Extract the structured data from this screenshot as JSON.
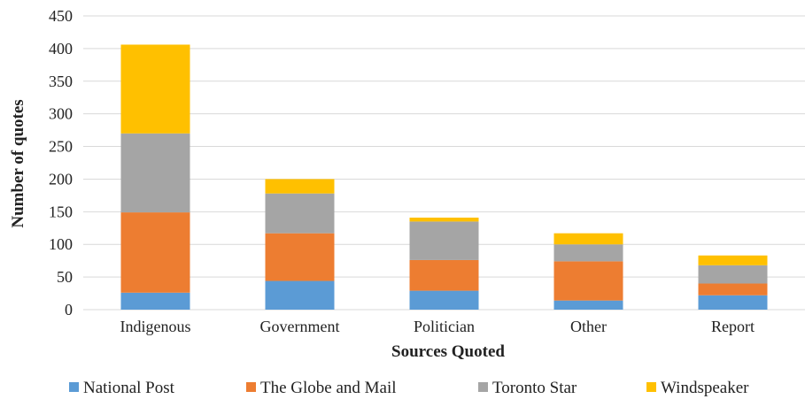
{
  "chart_data": {
    "type": "bar",
    "stacked": true,
    "categories": [
      "Indigenous",
      "Government",
      "Politician",
      "Other",
      "Report"
    ],
    "series": [
      {
        "name": "National Post",
        "color": "#5b9bd5",
        "values": [
          26,
          44,
          29,
          14,
          22
        ]
      },
      {
        "name": "The Globe and Mail",
        "color": "#ed7d31",
        "values": [
          123,
          73,
          47,
          60,
          18
        ]
      },
      {
        "name": "Toronto Star",
        "color": "#a5a5a5",
        "values": [
          121,
          61,
          59,
          26,
          28
        ]
      },
      {
        "name": "Windspeaker",
        "color": "#ffc000",
        "values": [
          136,
          22,
          6,
          17,
          15
        ]
      }
    ],
    "xlabel": "Sources Quoted",
    "ylabel": "Number of quotes",
    "ylim": [
      0,
      450
    ],
    "yticks": [
      "0",
      "50",
      "100",
      "150",
      "200",
      "250",
      "300",
      "350",
      "400",
      "450"
    ],
    "grid": true,
    "legend_position": "bottom"
  }
}
